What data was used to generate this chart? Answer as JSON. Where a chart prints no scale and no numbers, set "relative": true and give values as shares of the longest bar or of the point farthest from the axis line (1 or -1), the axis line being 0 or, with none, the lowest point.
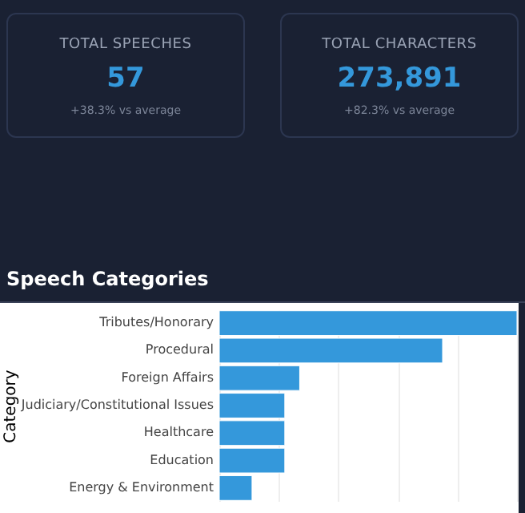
{
  "chart_data": [
    {
      "type": "other",
      "title": "TOTAL SPEECHES",
      "annotations": [
        "57",
        "+38.3% vs average"
      ]
    },
    {
      "type": "other",
      "title": "TOTAL CHARACTERS",
      "annotations": [
        "273,891",
        "+82.3% vs average"
      ]
    },
    {
      "type": "bar",
      "title": "Speech Categories",
      "ylabel": "Category",
      "orientation": "horizontal",
      "relative": true,
      "grid": "x",
      "color": "#3498db",
      "categories": [
        "Tributes/Honorary",
        "Procedural",
        "Foreign Affairs",
        "Judiciary/Constitutional Issues",
        "Healthcare",
        "Education",
        "Energy & Environment"
      ],
      "values": [
        1,
        0.75,
        0.27,
        0.22,
        0.22,
        0.22,
        0.11
      ]
    }
  ]
}
